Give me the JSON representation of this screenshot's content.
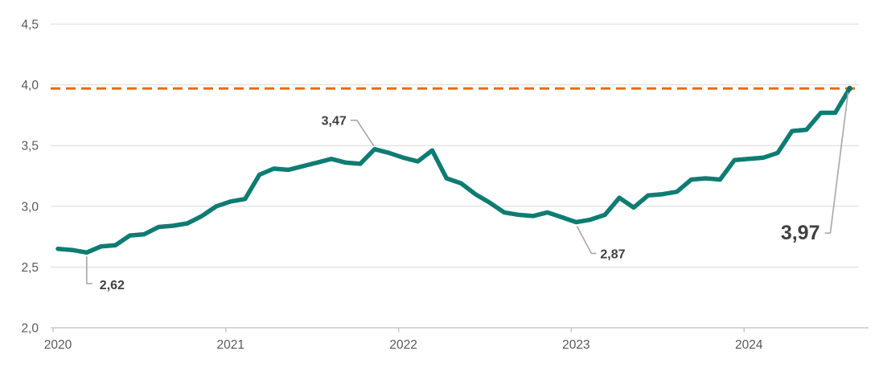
{
  "chart_data": {
    "type": "line",
    "title": "",
    "xlabel": "",
    "ylabel": "",
    "ylim": [
      2.0,
      4.5
    ],
    "grid": "horizontal",
    "x_unit": "month",
    "months": [
      "2020-01",
      "2020-02",
      "2020-03",
      "2020-04",
      "2020-05",
      "2020-06",
      "2020-07",
      "2020-08",
      "2020-09",
      "2020-10",
      "2020-11",
      "2020-12",
      "2021-01",
      "2021-02",
      "2021-03",
      "2021-04",
      "2021-05",
      "2021-06",
      "2021-07",
      "2021-08",
      "2021-09",
      "2021-10",
      "2021-11",
      "2021-12",
      "2022-01",
      "2022-02",
      "2022-03",
      "2022-04",
      "2022-05",
      "2022-06",
      "2022-07",
      "2022-08",
      "2022-09",
      "2022-10",
      "2022-11",
      "2022-12",
      "2023-01",
      "2023-02",
      "2023-03",
      "2023-04",
      "2023-05",
      "2023-06",
      "2023-07",
      "2023-08",
      "2023-09",
      "2023-10",
      "2023-11",
      "2023-12",
      "2024-01",
      "2024-02",
      "2024-03",
      "2024-04",
      "2024-05",
      "2024-06",
      "2024-07",
      "2024-08"
    ],
    "values": [
      2.65,
      2.64,
      2.62,
      2.67,
      2.68,
      2.76,
      2.77,
      2.83,
      2.84,
      2.86,
      2.92,
      3.0,
      3.04,
      3.06,
      3.26,
      3.31,
      3.3,
      3.33,
      3.36,
      3.39,
      3.36,
      3.35,
      3.47,
      3.44,
      3.4,
      3.37,
      3.46,
      3.23,
      3.19,
      3.1,
      3.03,
      2.95,
      2.93,
      2.92,
      2.95,
      2.91,
      2.87,
      2.89,
      2.93,
      3.07,
      2.99,
      3.09,
      3.1,
      3.12,
      3.22,
      3.23,
      3.22,
      3.38,
      3.39,
      3.4,
      3.44,
      3.62,
      3.63,
      3.77,
      3.77,
      3.97
    ],
    "x_tick_labels": [
      "2020",
      "2021",
      "2022",
      "2023",
      "2024"
    ],
    "y_ticks": [
      {
        "value": 4.5,
        "label": "4,5"
      },
      {
        "value": 4.0,
        "label": "4,0"
      },
      {
        "value": 3.5,
        "label": "3,5"
      },
      {
        "value": 3.0,
        "label": "3,0"
      },
      {
        "value": 2.5,
        "label": "2,5"
      },
      {
        "value": 2.0,
        "label": "2,0"
      }
    ],
    "reference_line": {
      "value": 3.97,
      "style": "dashed",
      "color": "#E56C0A"
    },
    "annotations": [
      {
        "month": "2020-03",
        "value": 2.62,
        "label": "2,62",
        "emphasis": "normal"
      },
      {
        "month": "2021-11",
        "value": 3.47,
        "label": "3,47",
        "emphasis": "normal"
      },
      {
        "month": "2023-01",
        "value": 2.87,
        "label": "2,87",
        "emphasis": "normal"
      },
      {
        "month": "2024-08",
        "value": 3.97,
        "label": "3,97",
        "emphasis": "large"
      }
    ],
    "legend": "none",
    "colors": {
      "line": "#0E7C72",
      "end_marker": "#0C6F66",
      "grid": "#D9D9D9",
      "axis": "#BFBFBF",
      "tick_text": "#595959",
      "annotation_text": "#404040",
      "leader": "#A6A6A6",
      "background": "#FFFFFF"
    }
  }
}
